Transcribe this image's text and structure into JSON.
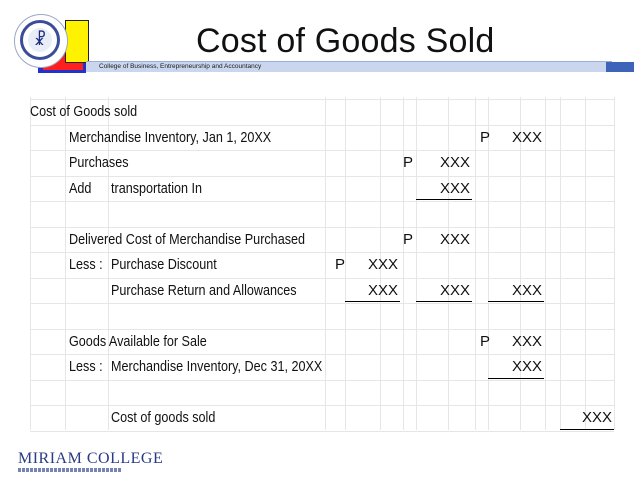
{
  "slide": {
    "title": "Cost of Goods Sold",
    "subtitle": "College of Business, Entrepreneurship and Accountancy",
    "footer_logo": "MIRIAM COLLEGE",
    "seal_glyph": "☧"
  },
  "rows": [
    {
      "label": "Cost of Goods sold"
    },
    {
      "label": "Merchandise Inventory, Jan 1, 20XX",
      "p4": "P",
      "v4": "XXX"
    },
    {
      "label": "Purchases",
      "p3": "P",
      "v3": "XXX"
    },
    {
      "prefix": "Add",
      "label": "transportation In",
      "v3": "XXX"
    },
    {},
    {
      "label": "Delivered Cost of Merchandise Purchased",
      "p3": "P",
      "v3": "XXX"
    },
    {
      "prefix": "Less :",
      "label": "Purchase Discount",
      "p2": "P",
      "v2": "XXX"
    },
    {
      "label": "Purchase Return and Allowances",
      "v2": "XXX",
      "v3": "XXX",
      "v4": "XXX"
    },
    {},
    {
      "label": "Goods Available for Sale",
      "p4": "P",
      "v4": "XXX"
    },
    {
      "prefix": "Less :",
      "label": "Merchandise Inventory, Dec 31, 20XX",
      "v4": "XXX"
    },
    {},
    {
      "label": "Cost of goods sold",
      "v5": "XXX"
    }
  ],
  "colors": {
    "seal_ring": "#3b4d9a",
    "header_band": "#c9d6ee",
    "header_band_accent": "#3d64b8",
    "deco_blue": "#2332c8",
    "deco_red": "#ff1f1f",
    "deco_yellow": "#fff200",
    "grid": "#e6e6e6",
    "footer_logo": "#2a3a84"
  }
}
